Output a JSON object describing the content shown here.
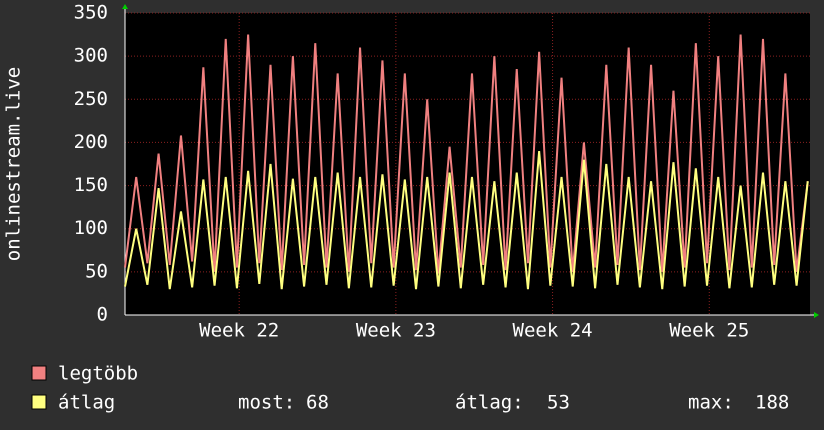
{
  "chart_data": {
    "type": "line",
    "ylabel": "onlinestream.live",
    "x": [
      0,
      0.5,
      1,
      1.5,
      2,
      2.5,
      3,
      3.5,
      4,
      4.5,
      5,
      5.5,
      6,
      6.5,
      7,
      7.5,
      8,
      8.5,
      9,
      9.5,
      10,
      10.5,
      11,
      11.5,
      12,
      12.5,
      13,
      13.5,
      14,
      14.5,
      15,
      15.5,
      16,
      16.5,
      17,
      17.5,
      18,
      18.5,
      19,
      19.5,
      20,
      20.5,
      21,
      21.5,
      22,
      22.5,
      23,
      23.5,
      24,
      24.5,
      25,
      25.5,
      26,
      26.5,
      27,
      27.5,
      28,
      28.5,
      29,
      29.5,
      30,
      30.5
    ],
    "xlim": [
      0,
      30.6
    ],
    "xticks": [
      {
        "value": 5.1,
        "label": "Week 22"
      },
      {
        "value": 12.1,
        "label": "Week 23"
      },
      {
        "value": 19.1,
        "label": "Week 24"
      },
      {
        "value": 26.1,
        "label": "Week 25"
      }
    ],
    "ylim": [
      0,
      350
    ],
    "yticks": [
      0,
      50,
      100,
      150,
      200,
      250,
      300,
      350
    ],
    "grid": true,
    "series": [
      {
        "name": "legtöbb",
        "color": "#f08080",
        "values": [
          55,
          160,
          60,
          187,
          58,
          208,
          62,
          287,
          50,
          320,
          55,
          325,
          60,
          290,
          52,
          300,
          58,
          315,
          55,
          280,
          50,
          310,
          60,
          295,
          55,
          280,
          52,
          250,
          48,
          195,
          55,
          280,
          58,
          300,
          52,
          285,
          60,
          305,
          55,
          275,
          50,
          200,
          55,
          290,
          58,
          310,
          52,
          290,
          50,
          260,
          55,
          315,
          60,
          300,
          52,
          325,
          55,
          320,
          58,
          280,
          50,
          155
        ]
      },
      {
        "name": "átlag",
        "color": "#ffff80",
        "values": [
          33,
          100,
          35,
          147,
          30,
          120,
          32,
          157,
          34,
          160,
          31,
          167,
          36,
          175,
          30,
          158,
          33,
          160,
          35,
          165,
          31,
          160,
          32,
          163,
          34,
          157,
          30,
          160,
          33,
          165,
          31,
          160,
          35,
          155,
          32,
          165,
          30,
          190,
          34,
          160,
          33,
          180,
          31,
          175,
          35,
          160,
          32,
          155,
          30,
          177,
          33,
          170,
          34,
          160,
          31,
          150,
          32,
          165,
          35,
          155,
          34,
          155
        ]
      }
    ],
    "stats": [
      {
        "label": "most:",
        "value": 68
      },
      {
        "label": "átlag:",
        "value": 53
      },
      {
        "label": "max:",
        "value": 188
      }
    ]
  }
}
